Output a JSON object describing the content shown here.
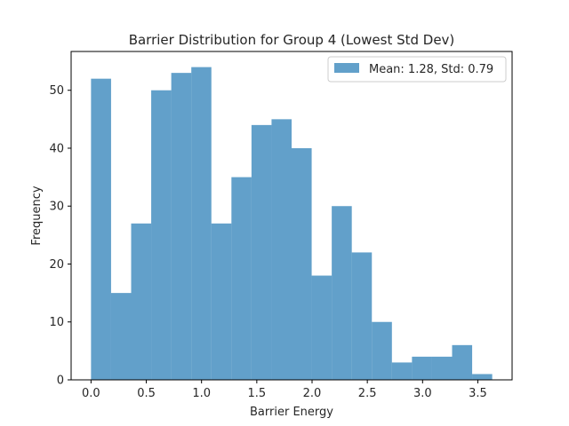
{
  "chart_data": {
    "type": "bar",
    "title": "Barrier Distribution for Group 4 (Lowest Std Dev)",
    "xlabel": "Barrier Energy",
    "ylabel": "Frequency",
    "bin_start": 0.0,
    "bin_end": 3.63,
    "values": [
      52,
      15,
      27,
      50,
      53,
      54,
      27,
      35,
      44,
      45,
      40,
      18,
      30,
      22,
      10,
      3,
      4,
      4,
      6,
      1
    ],
    "xlim": [
      -0.18,
      3.81
    ],
    "ylim": [
      0,
      56.7
    ],
    "xticks": [
      0.0,
      0.5,
      1.0,
      1.5,
      2.0,
      2.5,
      3.0,
      3.5
    ],
    "xtick_labels": [
      "0.0",
      "0.5",
      "1.0",
      "1.5",
      "2.0",
      "2.5",
      "3.0",
      "3.5"
    ],
    "yticks": [
      0,
      10,
      20,
      30,
      40,
      50
    ],
    "ytick_labels": [
      "0",
      "10",
      "20",
      "30",
      "40",
      "50"
    ],
    "bar_color": "#1f77b4",
    "bar_opacity": 0.7,
    "grid": false,
    "legend_position": "top-right",
    "legend": {
      "label": "Mean: 1.28, Std: 0.79",
      "color": "#1f77b4"
    }
  }
}
